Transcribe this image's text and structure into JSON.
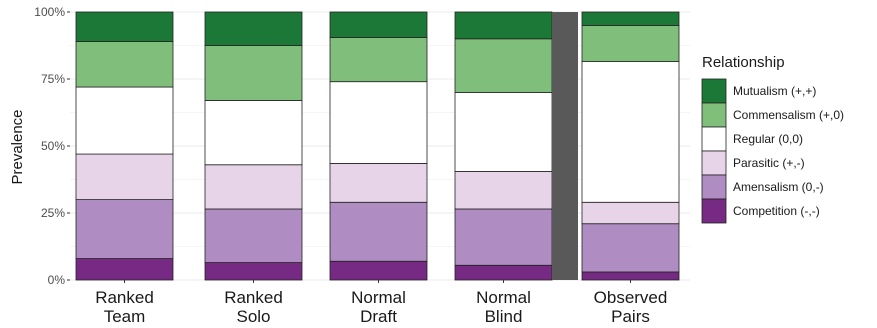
{
  "chart_data": {
    "type": "bar",
    "stacked": true,
    "percent": true,
    "ylabel": "Prevalence",
    "ylim": [
      0,
      100
    ],
    "yticks": [
      "0%",
      "25%",
      "50%",
      "75%",
      "100%"
    ],
    "yticks_values": [
      0,
      25,
      50,
      75,
      100
    ],
    "categories": [
      [
        "Ranked",
        "Team"
      ],
      [
        "Ranked",
        "Solo"
      ],
      [
        "Normal",
        "Draft"
      ],
      [
        "Normal",
        "Blind"
      ],
      [
        "Observed",
        "Pairs"
      ]
    ],
    "series": [
      {
        "name": "Competition (-,-)",
        "color": "#762a83",
        "values": [
          8,
          6.5,
          7,
          5.5,
          3
        ]
      },
      {
        "name": "Amensalism (0,-)",
        "color": "#af8dc3",
        "values": [
          22,
          20,
          22,
          21,
          18
        ]
      },
      {
        "name": "Parasitic (+,-)",
        "color": "#e7d4e8",
        "values": [
          17,
          16.5,
          14.5,
          14,
          8
        ]
      },
      {
        "name": "Regular (0,0)",
        "color": "#ffffff",
        "values": [
          25,
          24,
          30.5,
          29.5,
          52.5
        ]
      },
      {
        "name": "Commensalism (+,0)",
        "color": "#7fbf7b",
        "values": [
          17,
          20.5,
          16.5,
          20,
          13.5
        ]
      },
      {
        "name": "Mutualism (+,+)",
        "color": "#1b7837",
        "values": [
          11,
          12.5,
          9.5,
          10,
          5
        ]
      }
    ],
    "legend": {
      "title": "Relationship",
      "placement": "right",
      "order": [
        "Mutualism (+,+)",
        "Commensalism (+,0)",
        "Regular (0,0)",
        "Parasitic (+,-)",
        "Amensalism (0,-)",
        "Competition (-,-)"
      ]
    },
    "separator": {
      "after_category": 3,
      "color": "#595959"
    },
    "grid": true
  }
}
